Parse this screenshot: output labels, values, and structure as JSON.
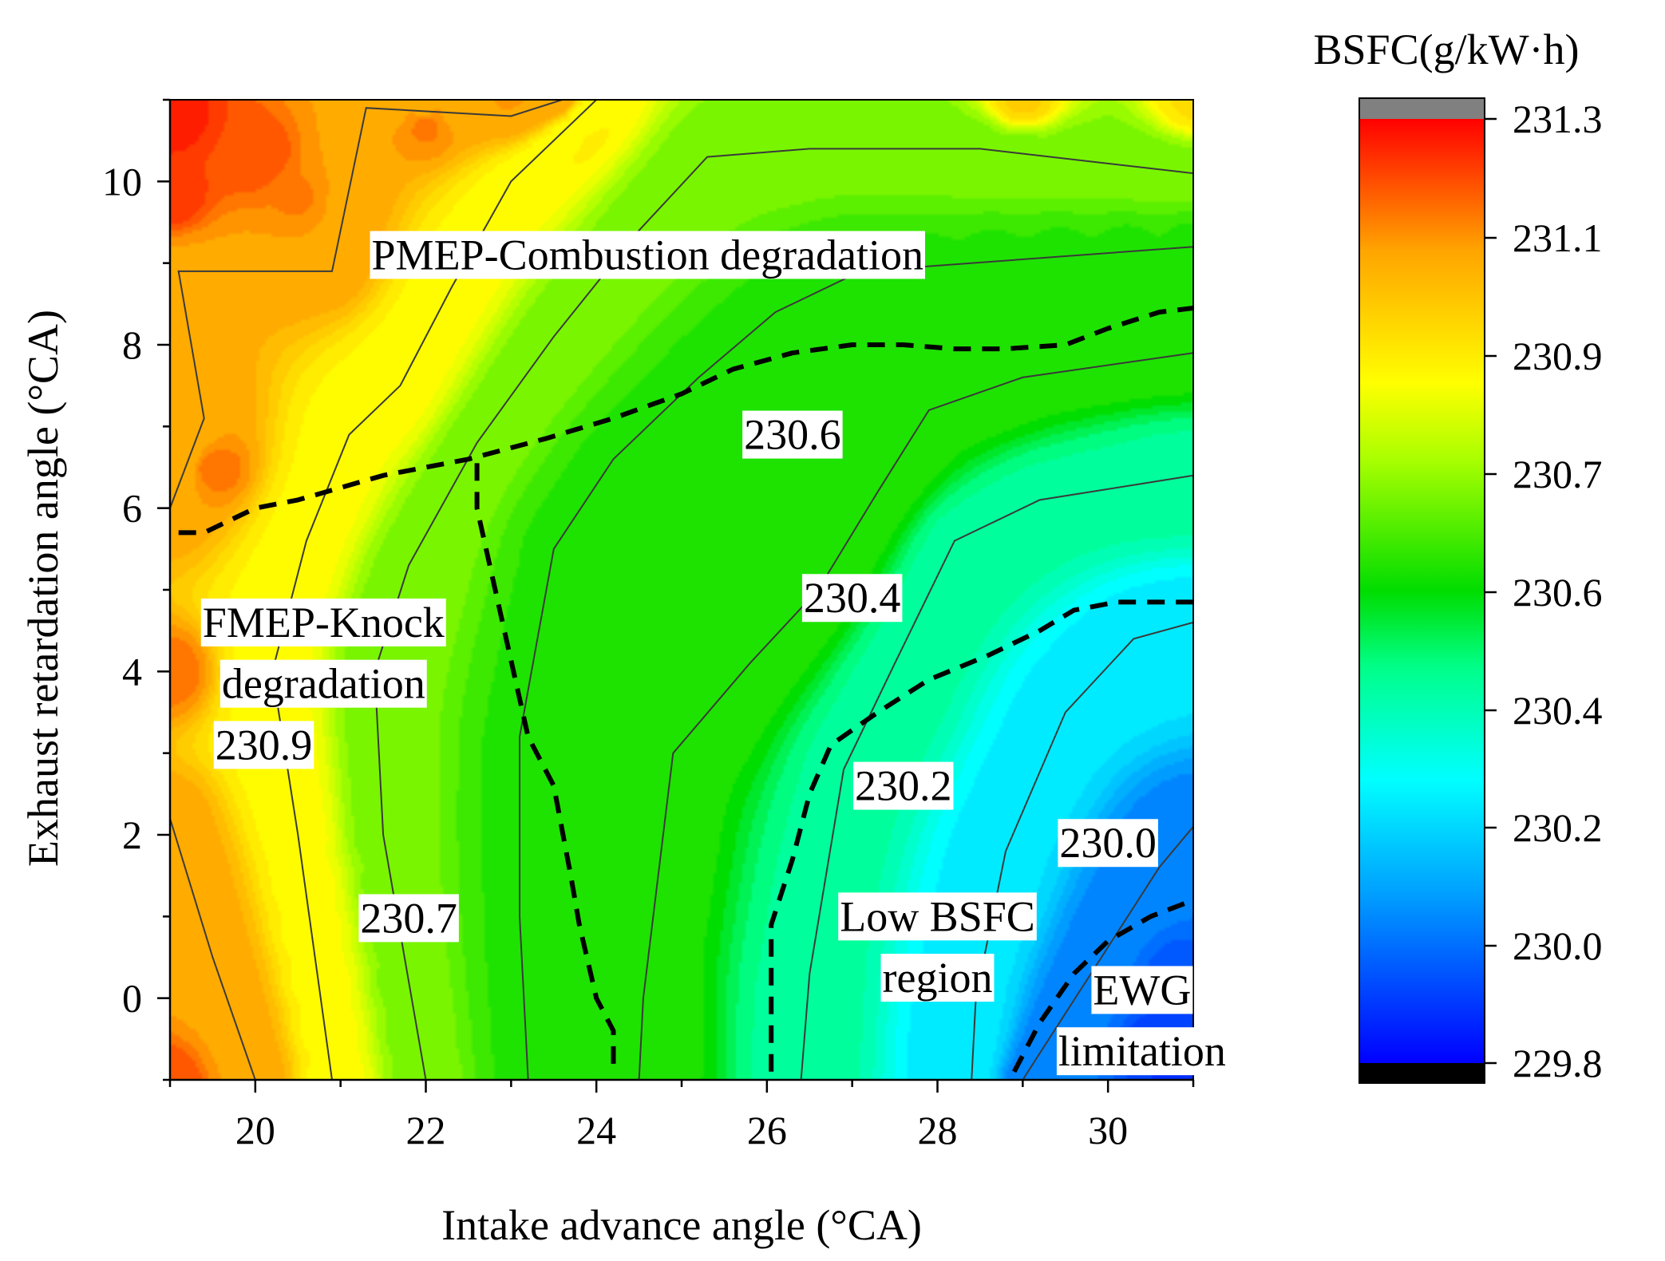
{
  "chart_data": {
    "type": "contour",
    "title": "",
    "xlabel": "Intake advance angle (°CA)",
    "ylabel": "Exhaust retardation angle (°CA)",
    "xlim": [
      19,
      31
    ],
    "ylim": [
      -1,
      11
    ],
    "x_ticks": [
      20,
      22,
      24,
      26,
      28,
      30
    ],
    "y_ticks": [
      0,
      2,
      4,
      6,
      8,
      10
    ],
    "colorbar": {
      "title": "BSFC(g/kW·h)",
      "range": [
        229.78,
        231.32
      ],
      "ticks": [
        229.8,
        230.0,
        230.2,
        230.4,
        230.6,
        230.7,
        230.9,
        231.1,
        231.3
      ],
      "tick_labels": [
        "229.8",
        "230.0",
        "230.2",
        "230.4",
        "230.6",
        "230.7",
        "230.9",
        "231.1",
        "231.3"
      ],
      "over_color": "#808080",
      "under_color": "#000000"
    },
    "colormap": [
      "#0000ff",
      "#00a0ff",
      "#00ffff",
      "#00ff88",
      "#00dd00",
      "#aaff00",
      "#ffff00",
      "#ffa500",
      "#ff0000"
    ],
    "contour_levels": [
      {
        "level": 230.0,
        "label": "230.0",
        "points": [
          [
            29.0,
            -1.0
          ],
          [
            29.8,
            0.3
          ],
          [
            30.6,
            1.6
          ],
          [
            31.0,
            2.1
          ]
        ]
      },
      {
        "level": 230.2,
        "label": "230.2",
        "points": [
          [
            28.4,
            -1.0
          ],
          [
            28.45,
            0.0
          ],
          [
            28.8,
            1.8
          ],
          [
            29.5,
            3.5
          ],
          [
            30.3,
            4.4
          ],
          [
            31.0,
            4.6
          ]
        ]
      },
      {
        "level": 230.4,
        "label": "230.4",
        "points": [
          [
            26.4,
            -1.0
          ],
          [
            26.5,
            0.3
          ],
          [
            26.9,
            2.8
          ],
          [
            27.5,
            4.1
          ],
          [
            28.2,
            5.6
          ],
          [
            29.2,
            6.1
          ],
          [
            30.4,
            6.3
          ],
          [
            31.0,
            6.4
          ]
        ]
      },
      {
        "level": 230.6,
        "label": "230.6",
        "points": [
          [
            24.5,
            -1.0
          ],
          [
            24.55,
            0.0
          ],
          [
            24.9,
            3.0
          ],
          [
            25.8,
            4.1
          ],
          [
            26.6,
            5.0
          ],
          [
            27.3,
            6.2
          ],
          [
            27.9,
            7.2
          ],
          [
            29.0,
            7.6
          ],
          [
            31.0,
            7.9
          ]
        ]
      },
      {
        "level": 230.6,
        "label": "",
        "points": [
          [
            23.2,
            -1.0
          ],
          [
            23.1,
            1.0
          ],
          [
            23.1,
            3.2
          ],
          [
            23.5,
            5.5
          ],
          [
            24.2,
            6.6
          ],
          [
            25.2,
            7.6
          ],
          [
            26.1,
            8.4
          ],
          [
            27.1,
            8.9
          ],
          [
            31.0,
            9.2
          ]
        ]
      },
      {
        "level": 230.7,
        "label": "230.7",
        "points": [
          [
            22.0,
            -1.0
          ],
          [
            21.5,
            2.0
          ],
          [
            21.4,
            4.0
          ],
          [
            21.8,
            5.3
          ],
          [
            22.6,
            6.8
          ],
          [
            23.5,
            8.1
          ],
          [
            24.5,
            9.4
          ],
          [
            25.3,
            10.3
          ],
          [
            26.5,
            10.4
          ],
          [
            28.5,
            10.4
          ],
          [
            31.0,
            10.1
          ]
        ]
      },
      {
        "level": 230.9,
        "label": "230.9",
        "points": [
          [
            20.9,
            -1.0
          ],
          [
            20.5,
            2.0
          ],
          [
            20.2,
            4.0
          ],
          [
            20.6,
            5.6
          ],
          [
            21.1,
            6.9
          ],
          [
            21.7,
            7.5
          ],
          [
            22.3,
            8.7
          ],
          [
            23.0,
            10.0
          ],
          [
            24.0,
            11.0
          ]
        ]
      },
      {
        "level": 231.1,
        "label": "",
        "points": [
          [
            20.0,
            -1.0
          ],
          [
            19.5,
            0.5
          ],
          [
            19.0,
            2.2
          ]
        ]
      },
      {
        "level": 231.1,
        "label": "",
        "points": [
          [
            19.0,
            6.0
          ],
          [
            19.4,
            7.1
          ],
          [
            19.1,
            8.9
          ],
          [
            20.9,
            8.9
          ],
          [
            21.3,
            10.9
          ],
          [
            23.0,
            10.8
          ],
          [
            23.6,
            11.0
          ]
        ]
      }
    ],
    "annotations": [
      {
        "text": "PMEP-Combustion degradation",
        "x": 24.6,
        "y": 9.1
      },
      {
        "text": "FMEP-Knock",
        "x": 20.8,
        "y": 4.6
      },
      {
        "text": "degradation",
        "x": 20.8,
        "y": 3.85
      },
      {
        "text": "Low BSFC",
        "x": 28.0,
        "y": 1.0
      },
      {
        "text": "region",
        "x": 28.0,
        "y": 0.25
      },
      {
        "text": "EWG",
        "x": 30.4,
        "y": 0.1
      },
      {
        "text": "limitation",
        "x": 30.4,
        "y": -0.65
      }
    ],
    "boundaries": [
      {
        "name": "PMEP-combustion boundary",
        "points": [
          [
            19.1,
            5.7
          ],
          [
            19.4,
            5.7
          ],
          [
            20.0,
            6.0
          ],
          [
            20.5,
            6.1
          ],
          [
            21.5,
            6.4
          ],
          [
            22.5,
            6.6
          ],
          [
            23.4,
            6.85
          ],
          [
            24.2,
            7.1
          ],
          [
            25.0,
            7.4
          ],
          [
            25.6,
            7.7
          ],
          [
            26.3,
            7.9
          ],
          [
            27.0,
            8.0
          ],
          [
            27.6,
            8.0
          ],
          [
            28.2,
            7.95
          ],
          [
            28.8,
            7.95
          ],
          [
            29.5,
            8.0
          ],
          [
            30.0,
            8.2
          ],
          [
            30.6,
            8.4
          ],
          [
            31.0,
            8.45
          ]
        ]
      },
      {
        "name": "FMEP-knock boundary",
        "points": [
          [
            22.6,
            6.55
          ],
          [
            22.6,
            6.0
          ],
          [
            22.9,
            4.6
          ],
          [
            23.2,
            3.2
          ],
          [
            23.5,
            2.6
          ],
          [
            23.7,
            1.5
          ],
          [
            23.8,
            0.9
          ],
          [
            24.0,
            0.0
          ],
          [
            24.2,
            -0.4
          ],
          [
            24.2,
            -0.9
          ]
        ]
      },
      {
        "name": "Low BSFC region boundary",
        "points": [
          [
            26.05,
            -0.9
          ],
          [
            26.05,
            0.9
          ],
          [
            26.3,
            1.7
          ],
          [
            26.5,
            2.5
          ],
          [
            26.75,
            3.1
          ],
          [
            27.3,
            3.5
          ],
          [
            27.9,
            3.9
          ],
          [
            28.6,
            4.2
          ],
          [
            29.2,
            4.5
          ],
          [
            29.6,
            4.75
          ],
          [
            30.1,
            4.85
          ],
          [
            30.5,
            4.85
          ],
          [
            31.0,
            4.85
          ]
        ]
      },
      {
        "name": "EWG limitation boundary",
        "points": [
          [
            28.9,
            -0.9
          ],
          [
            29.2,
            -0.3
          ],
          [
            29.6,
            0.3
          ],
          [
            30.0,
            0.7
          ],
          [
            30.5,
            1.0
          ],
          [
            31.0,
            1.2
          ]
        ]
      }
    ],
    "contour_labels": [
      {
        "text": "230.6",
        "x": 26.3,
        "y": 6.9
      },
      {
        "text": "230.4",
        "x": 27.0,
        "y": 4.9
      },
      {
        "text": "230.2",
        "x": 27.6,
        "y": 2.6
      },
      {
        "text": "230.0",
        "x": 30.0,
        "y": 1.9
      },
      {
        "text": "230.7",
        "x": 21.8,
        "y": 0.98
      },
      {
        "text": "230.9",
        "x": 20.1,
        "y": 3.1
      }
    ]
  }
}
